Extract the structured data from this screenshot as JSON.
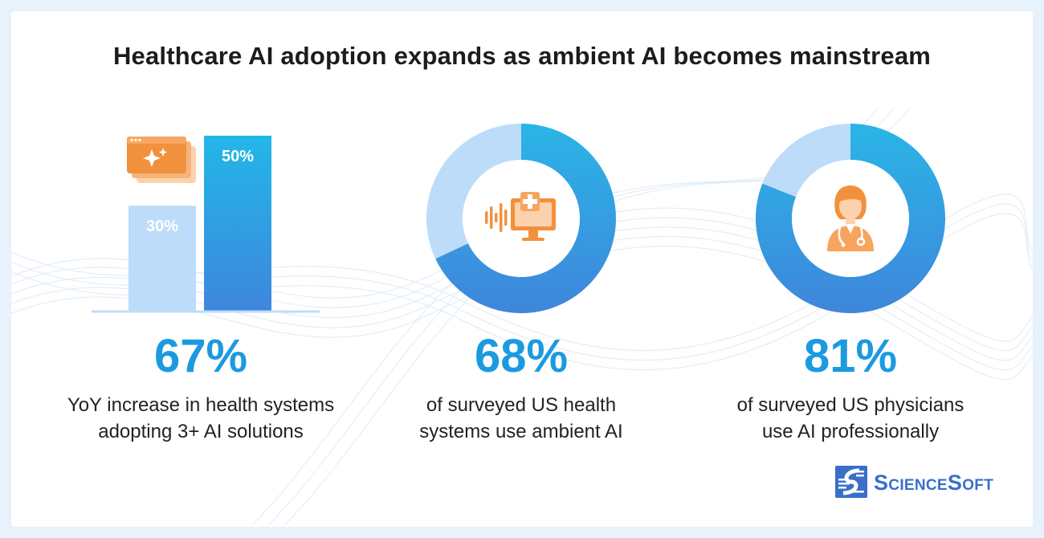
{
  "title": "Healthcare AI adoption expands as ambient AI becomes mainstream",
  "stats": [
    {
      "value": "67%",
      "caption_lines": [
        "YoY increase in health systems",
        "adopting 3+ AI solutions"
      ]
    },
    {
      "value": "68%",
      "caption_lines": [
        "of surveyed US health",
        "systems use ambient AI"
      ]
    },
    {
      "value": "81%",
      "caption_lines": [
        "of surveyed US physicians",
        "use AI professionally"
      ]
    }
  ],
  "chart_data": [
    {
      "type": "bar",
      "categories": [
        "",
        ""
      ],
      "values": [
        30,
        50
      ],
      "labels": [
        "30%",
        "50%"
      ],
      "ylim": [
        0,
        50
      ],
      "colors": [
        "#bcdcf9",
        "#1cb0e6"
      ]
    },
    {
      "type": "pie",
      "labels": [
        "",
        ""
      ],
      "values": [
        68,
        32
      ],
      "colors": [
        "#2a9be3",
        "#bcdcf9"
      ],
      "icon": "ambient-ai-monitor-icon"
    },
    {
      "type": "pie",
      "labels": [
        "",
        ""
      ],
      "values": [
        81,
        19
      ],
      "colors": [
        "#2a9be3",
        "#bcdcf9"
      ],
      "icon": "physician-icon"
    }
  ],
  "logo": {
    "text": "ScienceSoft",
    "icon": "sciencesoft-logo-icon"
  },
  "colors": {
    "accent": "#1b9ae0",
    "light": "#bcdcf9",
    "orange": "#f2913d"
  }
}
